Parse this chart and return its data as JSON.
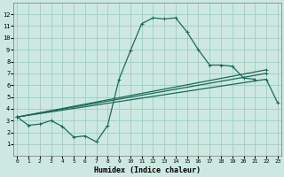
{
  "xlabel": "Humidex (Indice chaleur)",
  "background_color": "#cce8e0",
  "grid_color": "#9ecec4",
  "line_color": "#1a6b5a",
  "x_values": [
    0,
    1,
    2,
    3,
    4,
    5,
    6,
    7,
    8,
    9,
    10,
    11,
    12,
    13,
    14,
    15,
    16,
    17,
    18,
    19,
    20,
    21,
    22,
    23
  ],
  "line1_y": [
    3.3,
    2.6,
    2.7,
    3.0,
    2.5,
    1.6,
    1.7,
    1.2,
    2.6,
    6.5,
    8.9,
    11.2,
    11.7,
    11.6,
    11.7,
    10.5,
    9.0,
    7.7,
    7.7,
    7.6,
    6.6,
    6.5,
    null,
    null
  ],
  "line2_y": [
    3.3,
    null,
    null,
    null,
    null,
    null,
    null,
    null,
    null,
    null,
    null,
    null,
    null,
    null,
    null,
    null,
    null,
    null,
    null,
    null,
    null,
    null,
    6.5,
    4.5
  ],
  "line3_y": [
    3.3,
    null,
    null,
    null,
    null,
    null,
    null,
    null,
    null,
    null,
    null,
    null,
    null,
    null,
    null,
    null,
    null,
    null,
    null,
    null,
    null,
    null,
    7.0,
    null
  ],
  "line4_y": [
    3.3,
    null,
    null,
    null,
    null,
    null,
    null,
    null,
    null,
    null,
    null,
    null,
    null,
    null,
    null,
    null,
    null,
    null,
    null,
    null,
    null,
    null,
    7.3,
    null
  ],
  "xlim": [
    -0.3,
    23.3
  ],
  "ylim": [
    0,
    13
  ],
  "yticks": [
    1,
    2,
    3,
    4,
    5,
    6,
    7,
    8,
    9,
    10,
    11,
    12
  ],
  "xticks": [
    0,
    1,
    2,
    3,
    4,
    5,
    6,
    7,
    8,
    9,
    10,
    11,
    12,
    13,
    14,
    15,
    16,
    17,
    18,
    19,
    20,
    21,
    22,
    23
  ]
}
